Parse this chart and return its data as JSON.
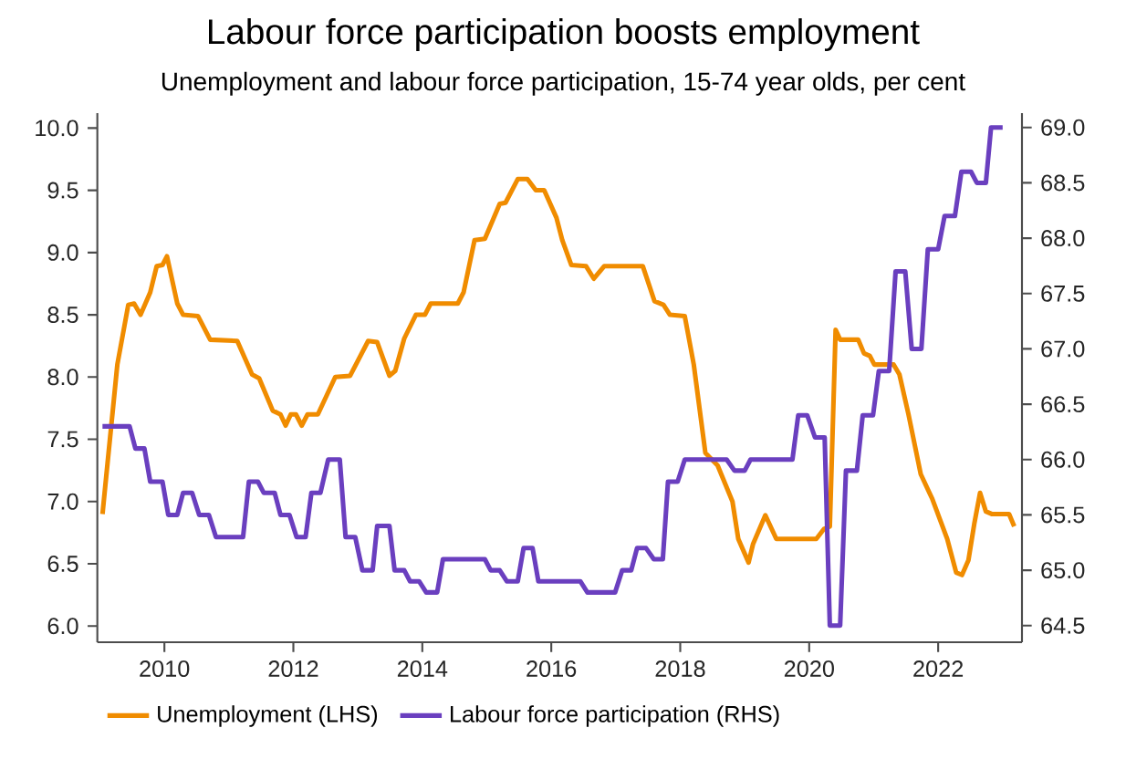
{
  "chart_data": {
    "type": "line",
    "title": "Labour force participation boosts employment",
    "subtitle": "Unemployment and labour force participation, 15-74 year olds, per cent",
    "xlim": [
      2008.96,
      2023.3
    ],
    "xticks": [
      2010,
      2012,
      2014,
      2016,
      2018,
      2020,
      2022
    ],
    "ylim": [
      5.87,
      10.12
    ],
    "yticks": [
      {
        "value": 6.0,
        "label": "6.0"
      },
      {
        "value": 6.5,
        "label": "6.5"
      },
      {
        "value": 7.0,
        "label": "7.0"
      },
      {
        "value": 7.5,
        "label": "7.5"
      },
      {
        "value": 8.0,
        "label": "8.0"
      },
      {
        "value": 8.5,
        "label": "8.5"
      },
      {
        "value": 9.0,
        "label": "9.0"
      },
      {
        "value": 9.5,
        "label": "9.5"
      },
      {
        "value": 10.0,
        "label": "10.0"
      }
    ],
    "y2lim": [
      64.35,
      69.13
    ],
    "y2ticks": [
      {
        "value": 64.5,
        "label": "64.5"
      },
      {
        "value": 65.0,
        "label": "65.0"
      },
      {
        "value": 65.5,
        "label": "65.5"
      },
      {
        "value": 66.0,
        "label": "66.0"
      },
      {
        "value": 66.5,
        "label": "66.5"
      },
      {
        "value": 67.0,
        "label": "67.0"
      },
      {
        "value": 67.5,
        "label": "67.5"
      },
      {
        "value": 68.0,
        "label": "68.0"
      },
      {
        "value": 68.5,
        "label": "68.5"
      },
      {
        "value": 69.0,
        "label": "69.0"
      }
    ],
    "grid": false,
    "legend": "bottom",
    "marker": "none",
    "line_style": "solid",
    "series": [
      {
        "name": "Unemployment (LHS)",
        "color": "#f08c00",
        "x": [
          2009.04,
          2009.27,
          2009.44,
          2009.53,
          2009.63,
          2009.78,
          2009.88,
          2009.97,
          2010.04,
          2010.2,
          2010.29,
          2010.52,
          2010.71,
          2011.13,
          2011.36,
          2011.47,
          2011.68,
          2011.8,
          2011.88,
          2011.96,
          2012.04,
          2012.13,
          2012.22,
          2012.38,
          2012.65,
          2012.88,
          2013.16,
          2013.3,
          2013.49,
          2013.58,
          2013.72,
          2013.9,
          2014.04,
          2014.13,
          2014.55,
          2014.64,
          2014.81,
          2014.97,
          2015.2,
          2015.29,
          2015.48,
          2015.63,
          2015.76,
          2015.89,
          2016.08,
          2016.17,
          2016.31,
          2016.54,
          2016.66,
          2016.82,
          2017.42,
          2017.6,
          2017.74,
          2017.84,
          2018.07,
          2018.21,
          2018.39,
          2018.58,
          2018.81,
          2018.9,
          2019.06,
          2019.13,
          2019.32,
          2019.49,
          2020.11,
          2020.23,
          2020.32,
          2020.41,
          2020.48,
          2020.76,
          2020.85,
          2020.94,
          2021.01,
          2021.31,
          2021.4,
          2021.54,
          2021.73,
          2021.91,
          2022.14,
          2022.28,
          2022.37,
          2022.47,
          2022.56,
          2022.65,
          2022.74,
          2022.83,
          2023.1,
          2023.18
        ],
        "values": [
          6.9,
          8.1,
          8.58,
          8.59,
          8.5,
          8.68,
          8.89,
          8.9,
          8.97,
          8.59,
          8.5,
          8.49,
          8.3,
          8.29,
          8.02,
          7.99,
          7.73,
          7.7,
          7.61,
          7.7,
          7.7,
          7.61,
          7.7,
          7.7,
          8.0,
          8.01,
          8.29,
          8.28,
          8.01,
          8.05,
          8.31,
          8.5,
          8.5,
          8.59,
          8.59,
          8.68,
          9.1,
          9.11,
          9.39,
          9.4,
          9.59,
          9.59,
          9.5,
          9.5,
          9.28,
          9.1,
          8.9,
          8.89,
          8.79,
          8.89,
          8.89,
          8.61,
          8.58,
          8.5,
          8.49,
          8.1,
          7.39,
          7.29,
          7.0,
          6.7,
          6.51,
          6.66,
          6.89,
          6.7,
          6.7,
          6.78,
          6.8,
          8.38,
          8.3,
          8.3,
          8.19,
          8.17,
          8.1,
          8.1,
          8.02,
          7.7,
          7.22,
          7.02,
          6.7,
          6.43,
          6.41,
          6.53,
          6.82,
          7.07,
          6.92,
          6.9,
          6.9,
          6.8
        ]
      },
      {
        "name": "Labour force participation (RHS)",
        "color": "#6a3fbf",
        "axis": "y2",
        "x": [
          2009.04,
          2009.46,
          2009.55,
          2009.69,
          2009.78,
          2009.97,
          2010.06,
          2010.2,
          2010.29,
          2010.43,
          2010.54,
          2010.69,
          2010.8,
          2011.22,
          2011.31,
          2011.45,
          2011.54,
          2011.71,
          2011.8,
          2011.94,
          2012.05,
          2012.19,
          2012.28,
          2012.42,
          2012.54,
          2012.72,
          2012.81,
          2012.96,
          2013.07,
          2013.23,
          2013.3,
          2013.49,
          2013.57,
          2013.72,
          2013.81,
          2013.95,
          2014.06,
          2014.23,
          2014.32,
          2014.97,
          2015.06,
          2015.2,
          2015.31,
          2015.48,
          2015.57,
          2015.71,
          2015.8,
          2016.45,
          2016.56,
          2016.99,
          2017.1,
          2017.24,
          2017.33,
          2017.47,
          2017.59,
          2017.73,
          2017.81,
          2017.96,
          2018.07,
          2018.72,
          2018.84,
          2019.0,
          2019.09,
          2019.74,
          2019.83,
          2019.97,
          2020.09,
          2020.24,
          2020.32,
          2020.48,
          2020.57,
          2020.74,
          2020.83,
          2020.99,
          2021.08,
          2021.24,
          2021.34,
          2021.49,
          2021.59,
          2021.74,
          2021.84,
          2022.0,
          2022.1,
          2022.26,
          2022.36,
          2022.51,
          2022.6,
          2022.74,
          2022.82,
          2023.0
        ],
        "values": [
          66.3,
          66.3,
          66.1,
          66.1,
          65.8,
          65.8,
          65.5,
          65.5,
          65.7,
          65.7,
          65.5,
          65.5,
          65.3,
          65.3,
          65.8,
          65.8,
          65.7,
          65.7,
          65.5,
          65.5,
          65.3,
          65.3,
          65.7,
          65.7,
          66.0,
          66.0,
          65.3,
          65.3,
          65.0,
          65.0,
          65.4,
          65.4,
          65.0,
          65.0,
          64.9,
          64.9,
          64.8,
          64.8,
          65.1,
          65.1,
          65.0,
          65.0,
          64.9,
          64.9,
          65.2,
          65.2,
          64.9,
          64.9,
          64.8,
          64.8,
          65.0,
          65.0,
          65.2,
          65.2,
          65.1,
          65.1,
          65.8,
          65.8,
          66.0,
          66.0,
          65.9,
          65.9,
          66.0,
          66.0,
          66.4,
          66.4,
          66.2,
          66.2,
          64.5,
          64.5,
          65.9,
          65.9,
          66.4,
          66.4,
          66.8,
          66.8,
          67.7,
          67.7,
          67.0,
          67.0,
          67.9,
          67.9,
          68.2,
          68.2,
          68.6,
          68.6,
          68.5,
          68.5,
          69.0,
          69.0
        ]
      }
    ]
  }
}
